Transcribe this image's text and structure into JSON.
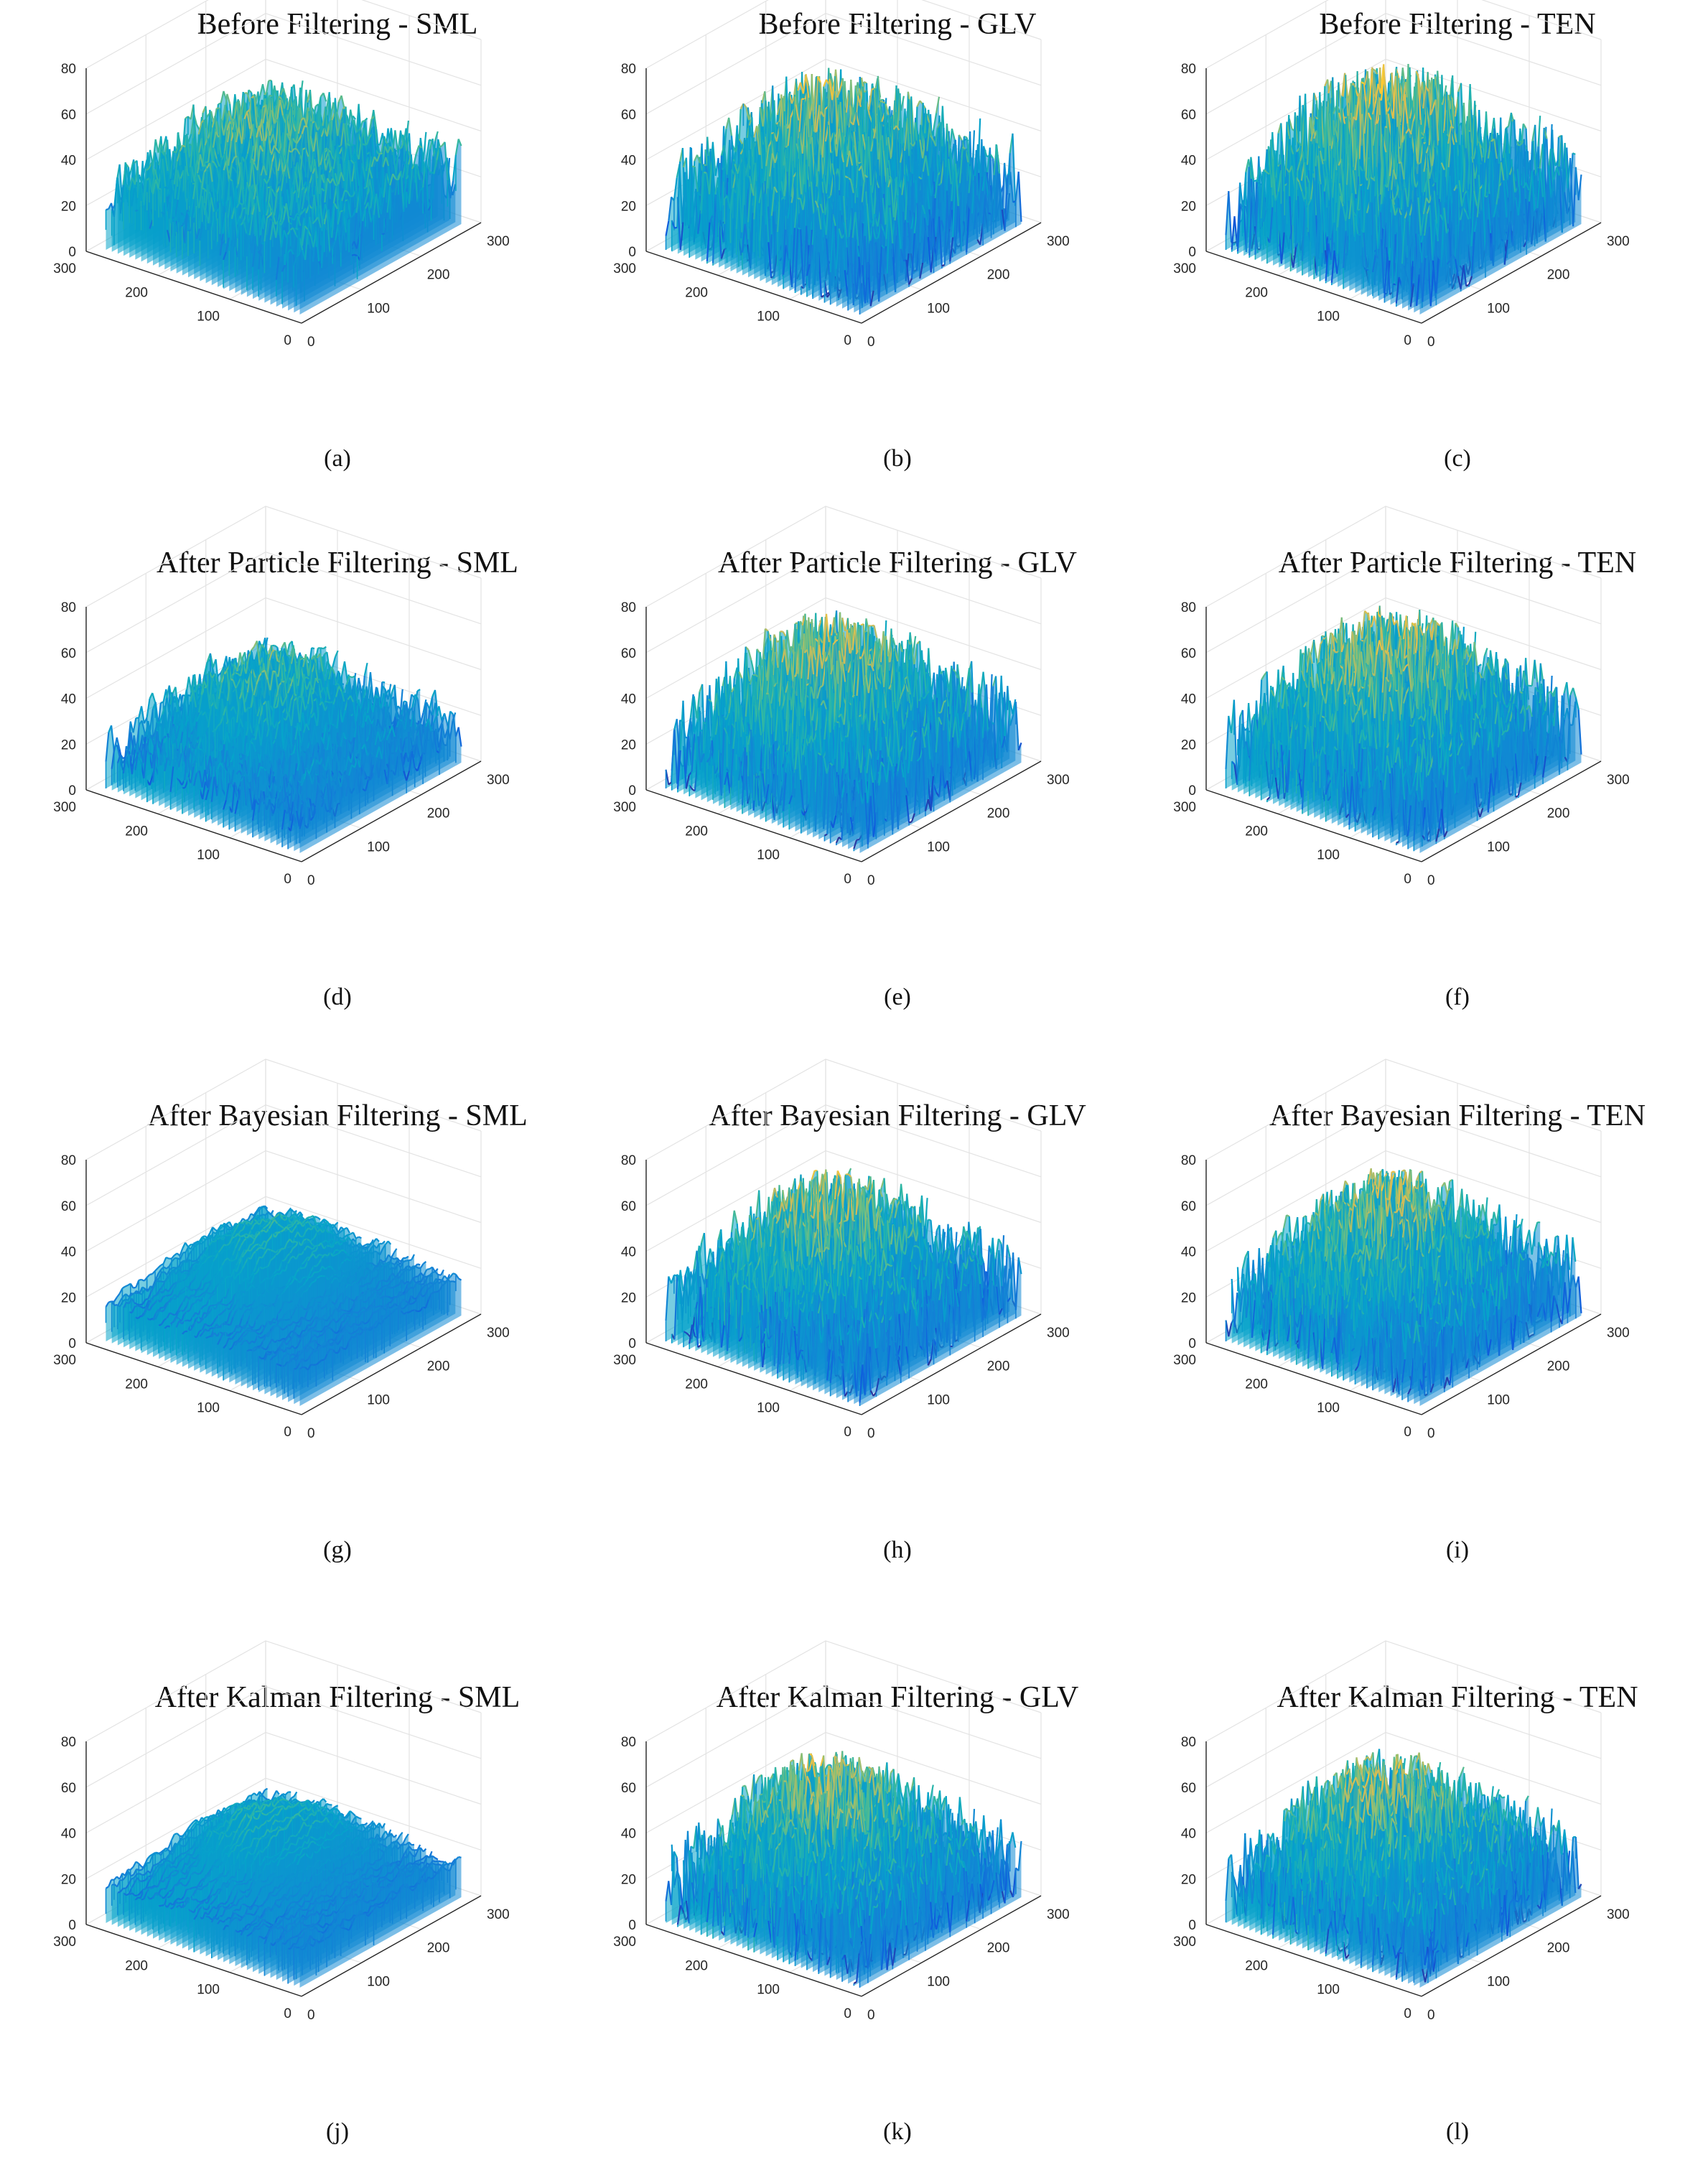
{
  "figure": {
    "colormap": [
      "#352a87",
      "#0f5cdd",
      "#1481d6",
      "#06a4ca",
      "#2eb7a4",
      "#87bf77",
      "#d1bb59",
      "#fec832",
      "#f9fb0e"
    ]
  },
  "chart_data": [
    {
      "id": "a",
      "type": "surface3d",
      "title": "Before Filtering - SML",
      "caption": "(a)",
      "zlim": [
        0,
        80
      ],
      "zticks": [
        "0",
        "20",
        "40",
        "60",
        "80"
      ],
      "xlim": [
        0,
        300
      ],
      "xticks": [
        "0",
        "100",
        "200",
        "300"
      ],
      "ylim": [
        0,
        300
      ],
      "yticks": [
        "0",
        "100",
        "200",
        "300"
      ],
      "grid": true,
      "base": 24,
      "amp": 16,
      "plateau": 14,
      "smooth": 0.2,
      "seed": 11
    },
    {
      "id": "b",
      "type": "surface3d",
      "title": "Before Filtering - GLV",
      "caption": "(b)",
      "zlim": [
        0,
        80
      ],
      "zticks": [
        "0",
        "20",
        "40",
        "60",
        "80"
      ],
      "xlim": [
        0,
        300
      ],
      "xticks": [
        "0",
        "100",
        "200",
        "300"
      ],
      "ylim": [
        0,
        300
      ],
      "yticks": [
        "0",
        "100",
        "200",
        "300"
      ],
      "grid": true,
      "base": 18,
      "amp": 24,
      "plateau": 22,
      "smooth": 0.0,
      "seed": 23
    },
    {
      "id": "c",
      "type": "surface3d",
      "title": "Before Filtering - TEN",
      "caption": "(c)",
      "zlim": [
        0,
        80
      ],
      "zticks": [
        "0",
        "20",
        "40",
        "60",
        "80"
      ],
      "xlim": [
        0,
        300
      ],
      "xticks": [
        "0",
        "100",
        "200",
        "300"
      ],
      "ylim": [
        0,
        300
      ],
      "yticks": [
        "0",
        "100",
        "200",
        "300"
      ],
      "grid": true,
      "base": 18,
      "amp": 24,
      "plateau": 26,
      "smooth": 0.0,
      "seed": 37
    },
    {
      "id": "d",
      "type": "surface3d",
      "title": "After Particle Filtering - SML",
      "caption": "(d)",
      "zlim": [
        0,
        80
      ],
      "zticks": [
        "0",
        "20",
        "40",
        "60",
        "80"
      ],
      "xlim": [
        0,
        300
      ],
      "xticks": [
        "0",
        "100",
        "200",
        "300"
      ],
      "ylim": [
        0,
        300
      ],
      "yticks": [
        "0",
        "100",
        "200",
        "300"
      ],
      "grid": true,
      "base": 16,
      "amp": 14,
      "plateau": 20,
      "smooth": 0.35,
      "seed": 41
    },
    {
      "id": "e",
      "type": "surface3d",
      "title": "After Particle Filtering - GLV",
      "caption": "(e)",
      "zlim": [
        0,
        80
      ],
      "zticks": [
        "0",
        "20",
        "40",
        "60",
        "80"
      ],
      "xlim": [
        0,
        300
      ],
      "xticks": [
        "0",
        "100",
        "200",
        "300"
      ],
      "ylim": [
        0,
        300
      ],
      "yticks": [
        "0",
        "100",
        "200",
        "300"
      ],
      "grid": true,
      "base": 18,
      "amp": 22,
      "plateau": 24,
      "smooth": 0.05,
      "seed": 53
    },
    {
      "id": "f",
      "type": "surface3d",
      "title": "After Particle Filtering - TEN",
      "caption": "(f)",
      "zlim": [
        0,
        80
      ],
      "zticks": [
        "0",
        "20",
        "40",
        "60",
        "80"
      ],
      "xlim": [
        0,
        300
      ],
      "xticks": [
        "0",
        "100",
        "200",
        "300"
      ],
      "ylim": [
        0,
        300
      ],
      "yticks": [
        "0",
        "100",
        "200",
        "300"
      ],
      "grid": true,
      "base": 18,
      "amp": 22,
      "plateau": 26,
      "smooth": 0.05,
      "seed": 61
    },
    {
      "id": "g",
      "type": "surface3d",
      "title": "After Bayesian Filtering - SML",
      "caption": "(g)",
      "zlim": [
        0,
        80
      ],
      "zticks": [
        "0",
        "20",
        "40",
        "60",
        "80"
      ],
      "xlim": [
        0,
        300
      ],
      "xticks": [
        "0",
        "100",
        "200",
        "300"
      ],
      "ylim": [
        0,
        300
      ],
      "yticks": [
        "0",
        "100",
        "200",
        "300"
      ],
      "grid": true,
      "base": 16,
      "amp": 7,
      "plateau": 18,
      "smooth": 0.7,
      "seed": 71
    },
    {
      "id": "h",
      "type": "surface3d",
      "title": "After Bayesian Filtering - GLV",
      "caption": "(h)",
      "zlim": [
        0,
        80
      ],
      "zticks": [
        "0",
        "20",
        "40",
        "60",
        "80"
      ],
      "xlim": [
        0,
        300
      ],
      "xticks": [
        "0",
        "100",
        "200",
        "300"
      ],
      "ylim": [
        0,
        300
      ],
      "yticks": [
        "0",
        "100",
        "200",
        "300"
      ],
      "grid": true,
      "base": 17,
      "amp": 20,
      "plateau": 26,
      "smooth": 0.1,
      "seed": 83
    },
    {
      "id": "i",
      "type": "surface3d",
      "title": "After Bayesian Filtering - TEN",
      "caption": "(i)",
      "zlim": [
        0,
        80
      ],
      "zticks": [
        "0",
        "20",
        "40",
        "60",
        "80"
      ],
      "xlim": [
        0,
        300
      ],
      "xticks": [
        "0",
        "100",
        "200",
        "300"
      ],
      "ylim": [
        0,
        300
      ],
      "yticks": [
        "0",
        "100",
        "200",
        "300"
      ],
      "grid": true,
      "base": 17,
      "amp": 20,
      "plateau": 26,
      "smooth": 0.1,
      "seed": 97
    },
    {
      "id": "j",
      "type": "surface3d",
      "title": "After Kalman Filtering - SML",
      "caption": "(j)",
      "zlim": [
        0,
        80
      ],
      "zticks": [
        "0",
        "20",
        "40",
        "60",
        "80"
      ],
      "xlim": [
        0,
        300
      ],
      "xticks": [
        "0",
        "100",
        "200",
        "300"
      ],
      "ylim": [
        0,
        300
      ],
      "yticks": [
        "0",
        "100",
        "200",
        "300"
      ],
      "grid": true,
      "base": 16,
      "amp": 7,
      "plateau": 18,
      "smooth": 0.7,
      "seed": 101
    },
    {
      "id": "k",
      "type": "surface3d",
      "title": "After Kalman Filtering - GLV",
      "caption": "(k)",
      "zlim": [
        0,
        80
      ],
      "zticks": [
        "0",
        "20",
        "40",
        "60",
        "80"
      ],
      "xlim": [
        0,
        300
      ],
      "xticks": [
        "0",
        "100",
        "200",
        "300"
      ],
      "ylim": [
        0,
        300
      ],
      "yticks": [
        "0",
        "100",
        "200",
        "300"
      ],
      "grid": true,
      "base": 17,
      "amp": 20,
      "plateau": 26,
      "smooth": 0.1,
      "seed": 113
    },
    {
      "id": "l",
      "type": "surface3d",
      "title": "After Kalman Filtering - TEN",
      "caption": "(l)",
      "zlim": [
        0,
        80
      ],
      "zticks": [
        "0",
        "20",
        "40",
        "60",
        "80"
      ],
      "xlim": [
        0,
        300
      ],
      "xticks": [
        "0",
        "100",
        "200",
        "300"
      ],
      "ylim": [
        0,
        300
      ],
      "yticks": [
        "0",
        "100",
        "200",
        "300"
      ],
      "grid": true,
      "base": 17,
      "amp": 20,
      "plateau": 26,
      "smooth": 0.1,
      "seed": 127
    }
  ]
}
